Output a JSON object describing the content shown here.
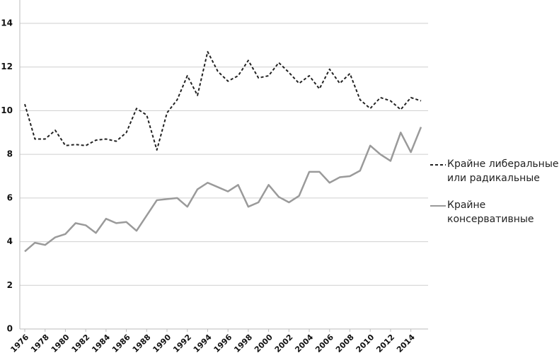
{
  "chart_data": {
    "type": "line",
    "x": [
      1976,
      1977,
      1978,
      1979,
      1980,
      1981,
      1982,
      1983,
      1984,
      1985,
      1986,
      1987,
      1988,
      1989,
      1990,
      1991,
      1992,
      1993,
      1994,
      1995,
      1996,
      1997,
      1998,
      1999,
      2000,
      2001,
      2002,
      2003,
      2004,
      2005,
      2006,
      2007,
      2008,
      2009,
      2010,
      2011,
      2012,
      2013,
      2014,
      2015
    ],
    "series": [
      {
        "name": "Крайне либеральные или радикальные",
        "color": "#222222",
        "dashed": true,
        "values": [
          10.3,
          8.7,
          8.7,
          9.1,
          8.4,
          8.45,
          8.4,
          8.65,
          8.7,
          8.6,
          9.0,
          10.1,
          9.8,
          8.2,
          9.9,
          10.5,
          11.6,
          10.7,
          12.7,
          11.8,
          11.35,
          11.6,
          12.3,
          11.5,
          11.6,
          12.2,
          11.75,
          11.25,
          11.6,
          11.0,
          11.9,
          11.25,
          11.7,
          10.5,
          10.1,
          10.6,
          10.45,
          10.05,
          10.6,
          10.45
        ]
      },
      {
        "name": "Крайне консервативные",
        "color": "#9a9a9a",
        "dashed": false,
        "values": [
          3.55,
          3.95,
          3.85,
          4.2,
          4.35,
          4.85,
          4.75,
          4.4,
          5.05,
          4.85,
          4.9,
          4.5,
          5.2,
          5.9,
          5.95,
          6.0,
          5.6,
          6.4,
          6.7,
          6.5,
          6.3,
          6.6,
          5.6,
          5.8,
          6.6,
          6.05,
          5.8,
          6.1,
          7.2,
          7.2,
          6.7,
          6.95,
          7.0,
          7.25,
          8.4,
          8.0,
          7.7,
          9.0,
          8.1,
          9.25
        ]
      }
    ],
    "xlim": [
      1976,
      2015
    ],
    "xticks": [
      1976,
      1978,
      1980,
      1982,
      1984,
      1986,
      1988,
      1990,
      1992,
      1994,
      1996,
      1998,
      2000,
      2002,
      2004,
      2006,
      2008,
      2010,
      2012,
      2014
    ],
    "ylim": [
      0,
      14
    ],
    "yticks": [
      0,
      2,
      4,
      6,
      8,
      10,
      12,
      14
    ],
    "grid": true,
    "legend": "right"
  }
}
